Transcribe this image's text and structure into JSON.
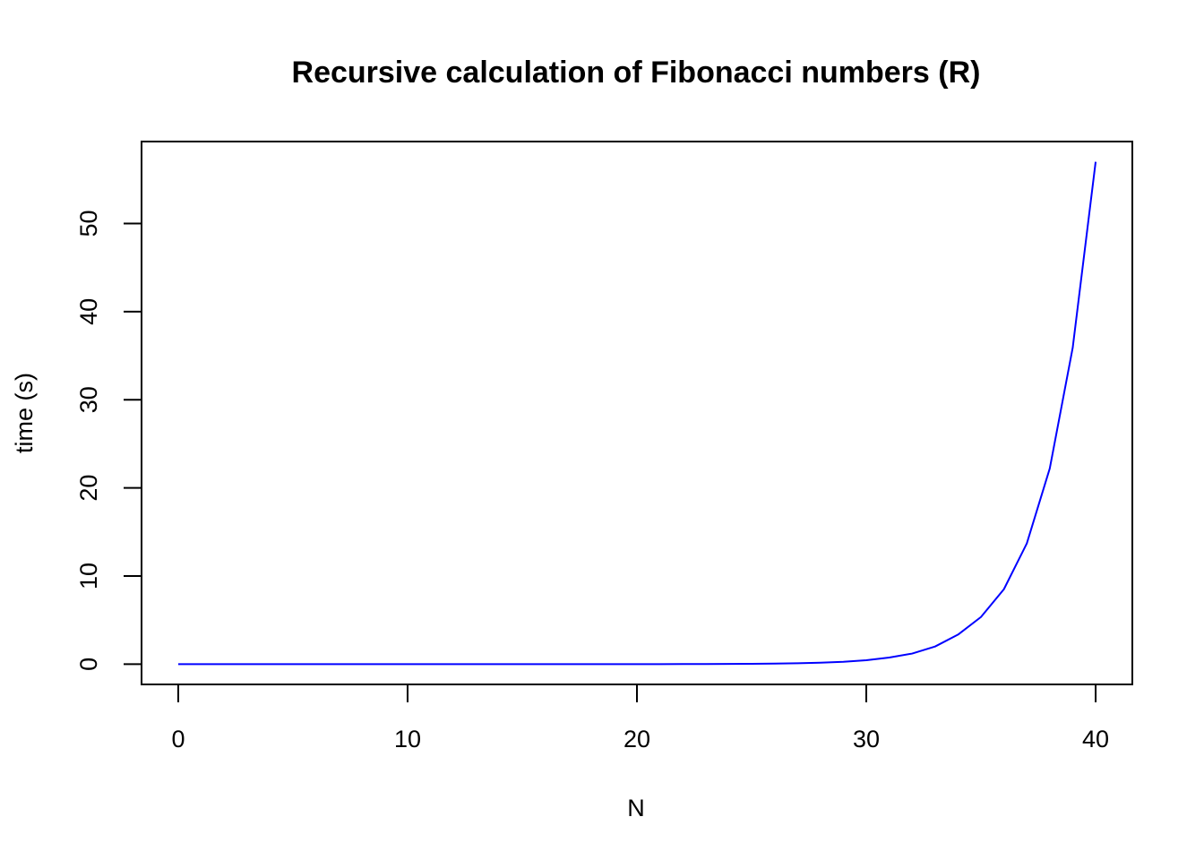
{
  "chart_data": {
    "type": "line",
    "title": "Recursive calculation of Fibonacci numbers (R)",
    "xlabel": "N",
    "ylabel": "time (s)",
    "xlim": [
      -1.6,
      41.6
    ],
    "ylim": [
      -2.3,
      59.3
    ],
    "x_ticks": [
      0,
      10,
      20,
      30,
      40
    ],
    "y_ticks": [
      0,
      10,
      20,
      30,
      40,
      50
    ],
    "grid": false,
    "legend": "none",
    "series": [
      {
        "color": "#0000ff",
        "x": [
          0,
          1,
          2,
          3,
          4,
          5,
          6,
          7,
          8,
          9,
          10,
          11,
          12,
          13,
          14,
          15,
          16,
          17,
          18,
          19,
          20,
          21,
          22,
          23,
          24,
          25,
          26,
          27,
          28,
          29,
          30,
          31,
          32,
          33,
          34,
          35,
          36,
          37,
          38,
          39,
          40
        ],
        "y": [
          0,
          0,
          0,
          0,
          0,
          0,
          0,
          0,
          0,
          0,
          0,
          0,
          0,
          0,
          0,
          0,
          0,
          0,
          0,
          0,
          0,
          0.005,
          0.01,
          0.015,
          0.025,
          0.04,
          0.06,
          0.1,
          0.17,
          0.27,
          0.45,
          0.75,
          1.2,
          2.0,
          3.35,
          5.35,
          8.5,
          13.7,
          22.2,
          35.9,
          57.0
        ]
      }
    ]
  }
}
